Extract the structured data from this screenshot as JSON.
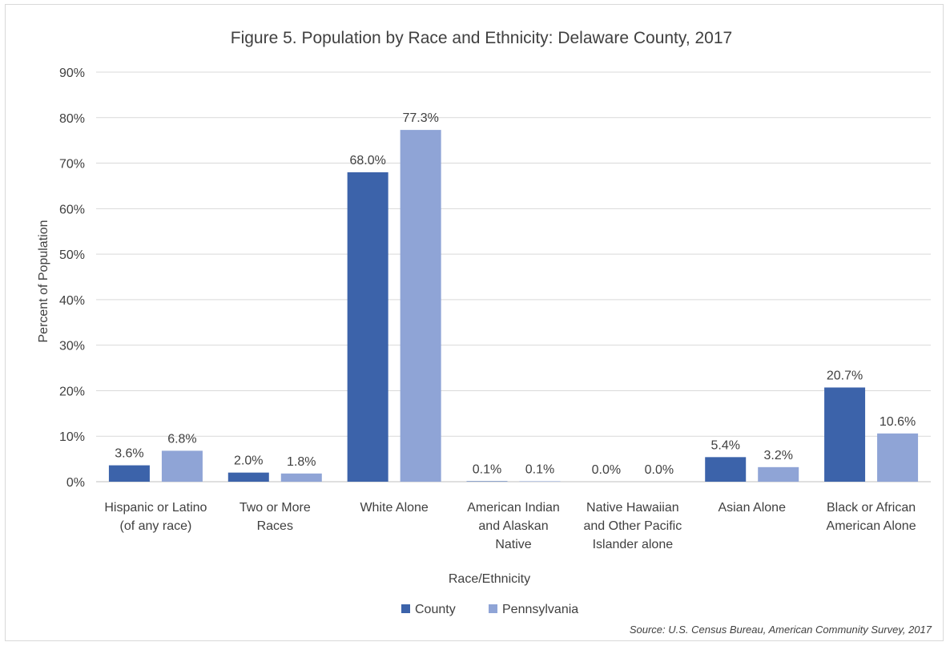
{
  "chart_data": {
    "type": "bar",
    "title": "Figure 5. Population by Race and Ethnicity: Delaware County, 2017",
    "xlabel": "Race/Ethnicity",
    "ylabel": "Percent of Population",
    "ylim": [
      0,
      90
    ],
    "yticks": [
      0,
      10,
      20,
      30,
      40,
      50,
      60,
      70,
      80,
      90
    ],
    "ytick_labels": [
      "0%",
      "10%",
      "20%",
      "30%",
      "40%",
      "50%",
      "60%",
      "70%",
      "80%",
      "90%"
    ],
    "categories": [
      [
        "Hispanic or Latino",
        "(of any race)"
      ],
      [
        "Two or More",
        "Races"
      ],
      [
        "White Alone"
      ],
      [
        "American Indian",
        "and Alaskan",
        "Native"
      ],
      [
        "Native Hawaiian",
        "and Other Pacific",
        "Islander alone"
      ],
      [
        "Asian Alone"
      ],
      [
        "Black or African",
        "American Alone"
      ]
    ],
    "series": [
      {
        "name": "County",
        "color": "#3c63aa",
        "values": [
          3.6,
          2.0,
          68.0,
          0.1,
          0.0,
          5.4,
          20.7
        ],
        "labels": [
          "3.6%",
          "2.0%",
          "68.0%",
          "0.1%",
          "0.0%",
          "5.4%",
          "20.7%"
        ]
      },
      {
        "name": "Pennsylvania",
        "color": "#8fa4d6",
        "values": [
          6.8,
          1.8,
          77.3,
          0.1,
          0.0,
          3.2,
          10.6
        ],
        "labels": [
          "6.8%",
          "1.8%",
          "77.3%",
          "0.1%",
          "0.0%",
          "3.2%",
          "10.6%"
        ]
      }
    ],
    "grid": true,
    "legend": "bottom-center"
  },
  "source": "Source: U.S. Census Bureau, American Community Survey, 2017"
}
